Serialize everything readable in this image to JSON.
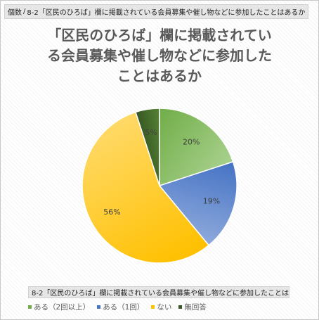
{
  "field_buttons": {
    "values_field": "個数",
    "separator": "/",
    "row_field": "8-2「区民のひろば」欄に掲載されている会員募集や催し物などに参加したことはあるか",
    "category_field": "8-2「区民のひろば」欄に掲載されている会員募集や催し物などに参加したことはあるか",
    "dropdown_icon": "triangle-down-icon"
  },
  "chart_data": {
    "type": "pie",
    "title": "「区民のひろば」欄に掲載されている会員募集や催し物などに参加したことはあるか",
    "title_lines": [
      "「区民のひろば」欄に掲載されてい",
      "る会員募集や催し物などに参加した",
      "ことはあるか"
    ],
    "categories": [
      "ある（2回以上）",
      "ある（1回）",
      "ない",
      "無回答"
    ],
    "values": [
      20,
      19,
      56,
      5
    ],
    "labels": [
      "20%",
      "19%",
      "56%",
      "5%"
    ],
    "colors": [
      "#70ad47",
      "#4472c4",
      "#ffc000",
      "#375623"
    ],
    "gradient_light": [
      "#a9d18e",
      "#8faadc",
      "#ffd966",
      "#548235"
    ],
    "legend_position": "bottom"
  }
}
